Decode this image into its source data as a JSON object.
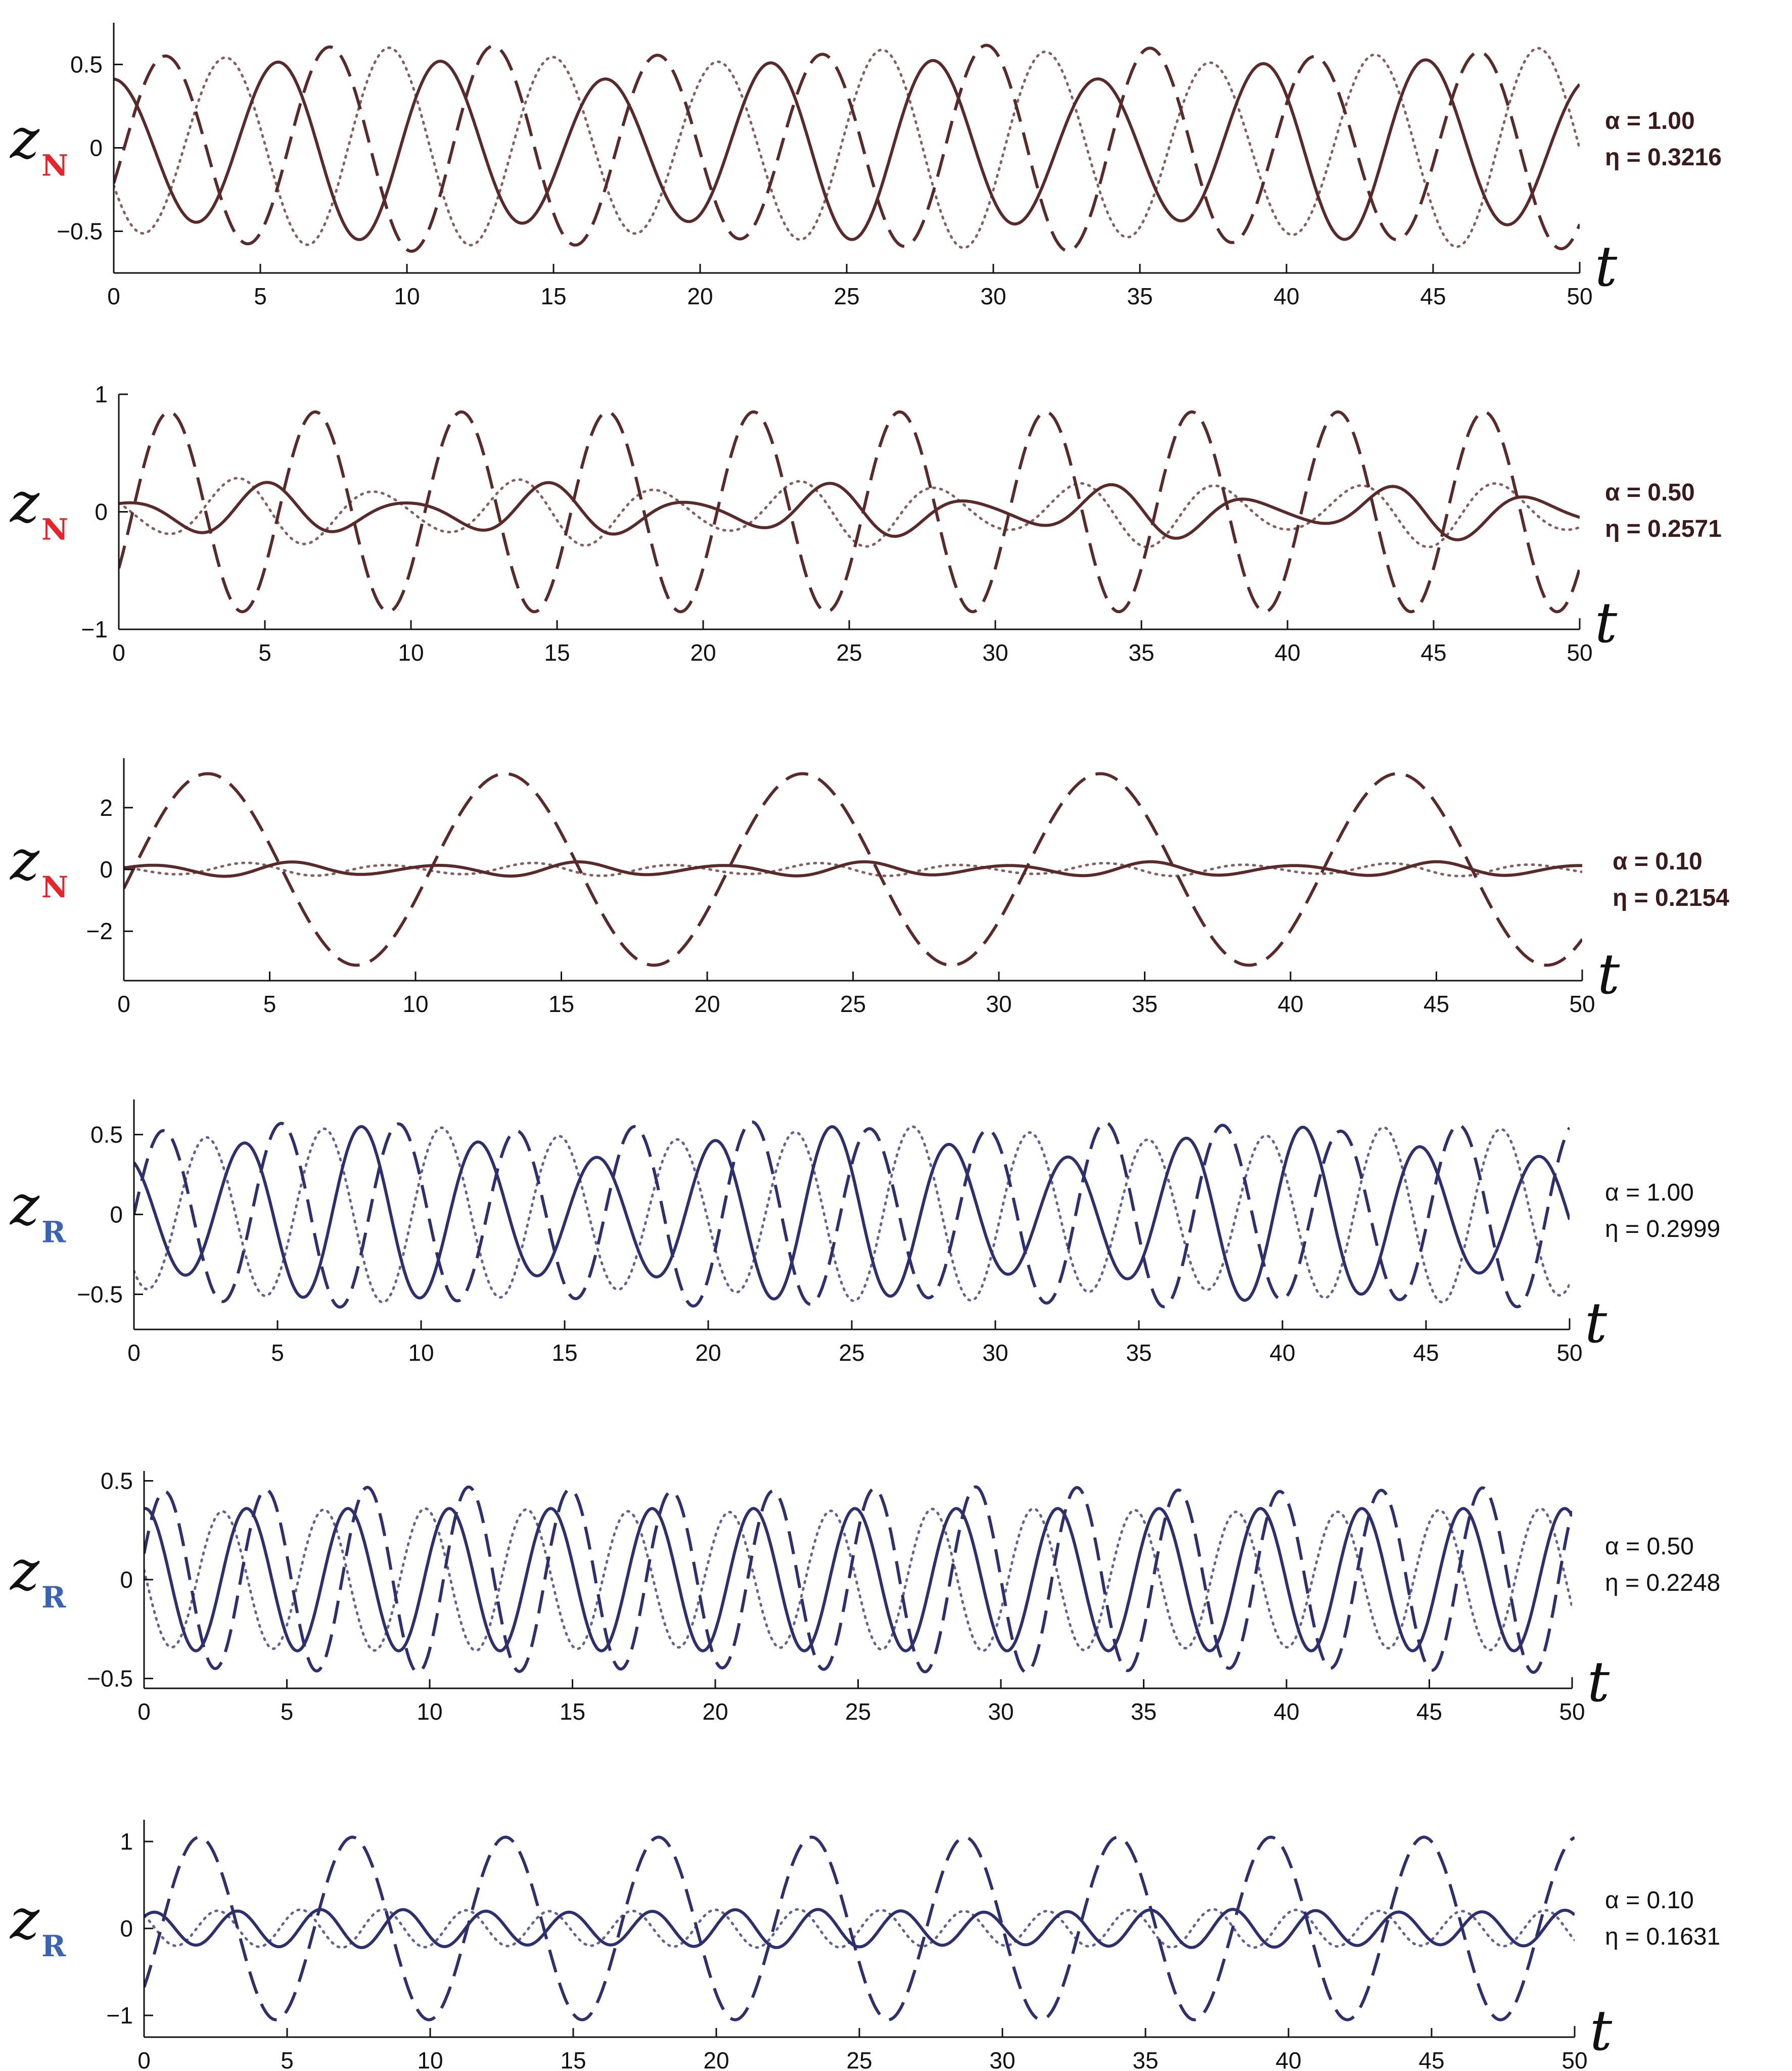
{
  "colors": {
    "brown": "#5a2a2a",
    "navy": "#2d2f6e",
    "sub_red": "#e8242b",
    "sub_blue": "#3a64b3"
  },
  "chart_data": [
    {
      "type": "line",
      "family": "N",
      "ylabel_main": "z",
      "ylabel_sub": "N",
      "xlabel": "t",
      "annotation": [
        "α = 1.00",
        "η = 0.3216"
      ],
      "xlim": [
        0,
        50
      ],
      "ylim": [
        -0.75,
        0.75
      ],
      "xticks": [
        "0",
        "5",
        "10",
        "15",
        "20",
        "25",
        "30",
        "35",
        "40",
        "45",
        "50"
      ],
      "yticks": [
        {
          "v": 0.5,
          "label": "0.5"
        },
        {
          "v": 0,
          "label": "0"
        },
        {
          "v": -0.5,
          "label": "−0.5"
        }
      ],
      "series": [
        {
          "style": "solid",
          "amplitude": 0.55,
          "period": 5.6,
          "phase": 1.6,
          "mod_depth": 0.25,
          "mod_period": 17
        },
        {
          "style": "dashed",
          "amplitude": 0.62,
          "period": 5.6,
          "phase": -0.4,
          "mod_depth": 0.12,
          "mod_period": 21
        },
        {
          "style": "dotted",
          "amplitude": 0.6,
          "period": 5.6,
          "phase": 3.6,
          "mod_depth": 0.15,
          "mod_period": 19
        }
      ]
    },
    {
      "type": "line",
      "family": "N",
      "ylabel_main": "z",
      "ylabel_sub": "N",
      "xlabel": "t",
      "annotation": [
        "α = 0.50",
        "η = 0.2571"
      ],
      "xlim": [
        0,
        50
      ],
      "ylim": [
        -1,
        1
      ],
      "xticks": [
        "0",
        "5",
        "10",
        "15",
        "20",
        "25",
        "30",
        "35",
        "40",
        "45",
        "50"
      ],
      "yticks": [
        {
          "v": 1,
          "label": "1"
        },
        {
          "v": 0,
          "label": "0"
        },
        {
          "v": -1,
          "label": "−1"
        }
      ],
      "series": [
        {
          "style": "solid",
          "amplitude": 0.25,
          "period": 4.8,
          "phase": 1.2,
          "mod_depth": 0.7,
          "mod_period": 10
        },
        {
          "style": "dashed",
          "amplitude": 0.85,
          "period": 5.0,
          "phase": -0.6,
          "mod_depth": 0.0,
          "mod_period": 20
        },
        {
          "style": "dotted",
          "amplitude": 0.3,
          "period": 4.8,
          "phase": 2.6,
          "mod_depth": 0.5,
          "mod_period": 10
        }
      ]
    },
    {
      "type": "line",
      "family": "N",
      "ylabel_main": "z",
      "ylabel_sub": "N",
      "xlabel": "t",
      "annotation": [
        "α = 0.10",
        "η = 0.2154"
      ],
      "xlim": [
        0,
        50
      ],
      "ylim": [
        -3.6,
        3.6
      ],
      "xticks": [
        "0",
        "5",
        "10",
        "15",
        "20",
        "25",
        "30",
        "35",
        "40",
        "45",
        "50"
      ],
      "yticks": [
        {
          "v": 2,
          "label": "2"
        },
        {
          "v": 0,
          "label": "0"
        },
        {
          "v": -2,
          "label": "−2"
        }
      ],
      "series": [
        {
          "style": "solid",
          "amplitude": 0.25,
          "period": 4.9,
          "phase": 0.4,
          "mod_depth": 0.5,
          "mod_period": 10
        },
        {
          "style": "dashed",
          "amplitude": 3.1,
          "period": 10.2,
          "phase": -0.2,
          "mod_depth": 0.0,
          "mod_period": 20
        },
        {
          "style": "dotted",
          "amplitude": 0.22,
          "period": 4.9,
          "phase": 2.5,
          "mod_depth": 0.4,
          "mod_period": 10
        }
      ]
    },
    {
      "type": "line",
      "family": "R",
      "ylabel_main": "z",
      "ylabel_sub": "R",
      "xlabel": "t",
      "annotation": [
        "α = 1.00",
        "η = 0.2999"
      ],
      "xlim": [
        0,
        50
      ],
      "ylim": [
        -0.72,
        0.72
      ],
      "xticks": [
        "0",
        "5",
        "10",
        "15",
        "20",
        "25",
        "30",
        "35",
        "40",
        "45",
        "50"
      ],
      "yticks": [
        {
          "v": 0.5,
          "label": "0.5"
        },
        {
          "v": 0,
          "label": "0"
        },
        {
          "v": -0.5,
          "label": "−0.5"
        }
      ],
      "series": [
        {
          "style": "solid",
          "amplitude": 0.55,
          "period": 4.1,
          "phase": 2.0,
          "mod_depth": 0.35,
          "mod_period": 16
        },
        {
          "style": "dashed",
          "amplitude": 0.58,
          "period": 4.1,
          "phase": 0.0,
          "mod_depth": 0.1,
          "mod_period": 14
        },
        {
          "style": "dotted",
          "amplitude": 0.55,
          "period": 4.1,
          "phase": 4.0,
          "mod_depth": 0.15,
          "mod_period": 18
        }
      ]
    },
    {
      "type": "line",
      "family": "R",
      "ylabel_main": "z",
      "ylabel_sub": "R",
      "xlabel": "t",
      "annotation": [
        "α = 0.50",
        "η = 0.2248"
      ],
      "xlim": [
        0,
        50
      ],
      "ylim": [
        -0.55,
        0.55
      ],
      "xticks": [
        "0",
        "5",
        "10",
        "15",
        "20",
        "25",
        "30",
        "35",
        "40",
        "45",
        "50"
      ],
      "yticks": [
        {
          "v": 0.5,
          "label": "0.5"
        },
        {
          "v": 0,
          "label": "0"
        },
        {
          "v": -0.5,
          "label": "−0.5"
        }
      ],
      "series": [
        {
          "style": "solid",
          "amplitude": 0.36,
          "period": 3.55,
          "phase": 1.5,
          "mod_depth": 0.0,
          "mod_period": 20
        },
        {
          "style": "dashed",
          "amplitude": 0.47,
          "period": 3.55,
          "phase": 0.3,
          "mod_depth": 0.05,
          "mod_period": 20
        },
        {
          "style": "dotted",
          "amplitude": 0.36,
          "period": 3.55,
          "phase": 3.0,
          "mod_depth": 0.05,
          "mod_period": 20
        }
      ]
    },
    {
      "type": "line",
      "family": "R",
      "ylabel_main": "z",
      "ylabel_sub": "R",
      "xlabel": "t",
      "annotation": [
        "α = 0.10",
        "η = 0.1631"
      ],
      "xlim": [
        0,
        50
      ],
      "ylim": [
        -1.25,
        1.25
      ],
      "xticks": [
        "0",
        "5",
        "10",
        "15",
        "20",
        "25",
        "30",
        "35",
        "40",
        "45",
        "50"
      ],
      "yticks": [
        {
          "v": 1,
          "label": "1"
        },
        {
          "v": 0,
          "label": "0"
        },
        {
          "v": -1,
          "label": "−1"
        }
      ],
      "series": [
        {
          "style": "solid",
          "amplitude": 0.22,
          "period": 2.9,
          "phase": 0.8,
          "mod_depth": 0.15,
          "mod_period": 15
        },
        {
          "style": "dashed",
          "amplitude": 1.05,
          "period": 5.35,
          "phase": -0.7,
          "mod_depth": 0.0,
          "mod_period": 20
        },
        {
          "style": "dotted",
          "amplitude": 0.22,
          "period": 2.9,
          "phase": 2.3,
          "mod_depth": 0.1,
          "mod_period": 15
        }
      ]
    }
  ]
}
